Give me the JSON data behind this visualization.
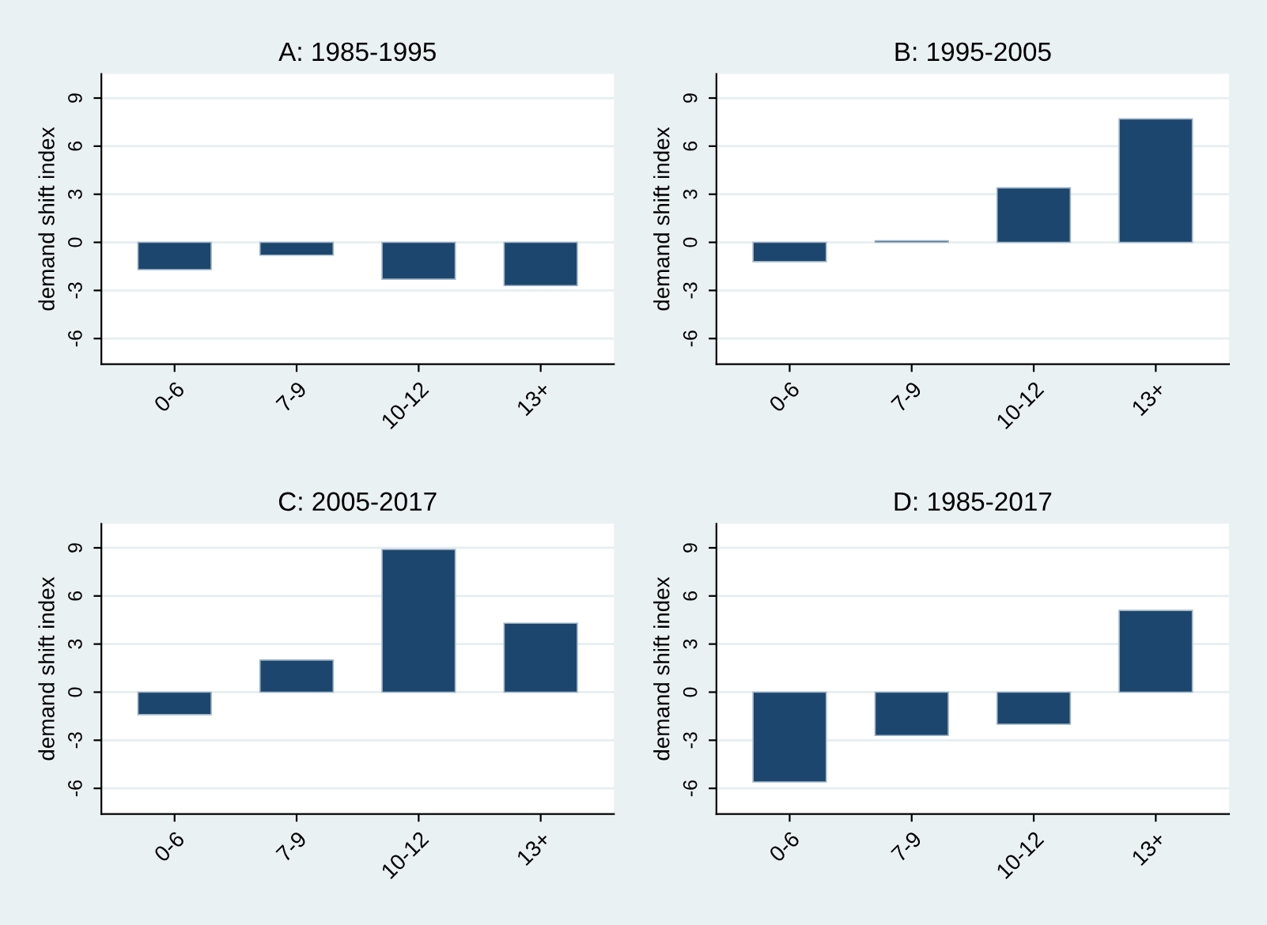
{
  "chart_data": [
    {
      "type": "bar",
      "title": "A: 1985-1995",
      "ylabel": "demand shift index",
      "categories": [
        "0-6",
        "7-9",
        "10-12",
        "13+"
      ],
      "values": [
        -1.7,
        -0.8,
        -2.3,
        -2.7
      ],
      "color": "#1c466d",
      "ylim": [
        -7.6,
        10.5
      ],
      "yticks": [
        -6,
        -3,
        0,
        3,
        6,
        9
      ],
      "grid": "y"
    },
    {
      "type": "bar",
      "title": "B: 1995-2005",
      "ylabel": "demand shift index",
      "categories": [
        "0-6",
        "7-9",
        "10-12",
        "13+"
      ],
      "values": [
        -1.2,
        0.1,
        3.4,
        7.7
      ],
      "color": "#1c466d",
      "ylim": [
        -7.6,
        10.5
      ],
      "yticks": [
        -6,
        -3,
        0,
        3,
        6,
        9
      ],
      "grid": "y"
    },
    {
      "type": "bar",
      "title": "C: 2005-2017",
      "ylabel": "demand shift index",
      "categories": [
        "0-6",
        "7-9",
        "10-12",
        "13+"
      ],
      "values": [
        -1.4,
        2.0,
        8.9,
        4.3
      ],
      "color": "#1c466d",
      "ylim": [
        -7.6,
        10.5
      ],
      "yticks": [
        -6,
        -3,
        0,
        3,
        6,
        9
      ],
      "grid": "y"
    },
    {
      "type": "bar",
      "title": "D: 1985-2017",
      "ylabel": "demand shift index",
      "categories": [
        "0-6",
        "7-9",
        "10-12",
        "13+"
      ],
      "values": [
        -5.6,
        -2.7,
        -2.0,
        5.1
      ],
      "color": "#1c466d",
      "ylim": [
        -7.6,
        10.5
      ],
      "yticks": [
        -6,
        -3,
        0,
        3,
        6,
        9
      ],
      "grid": "y"
    }
  ]
}
